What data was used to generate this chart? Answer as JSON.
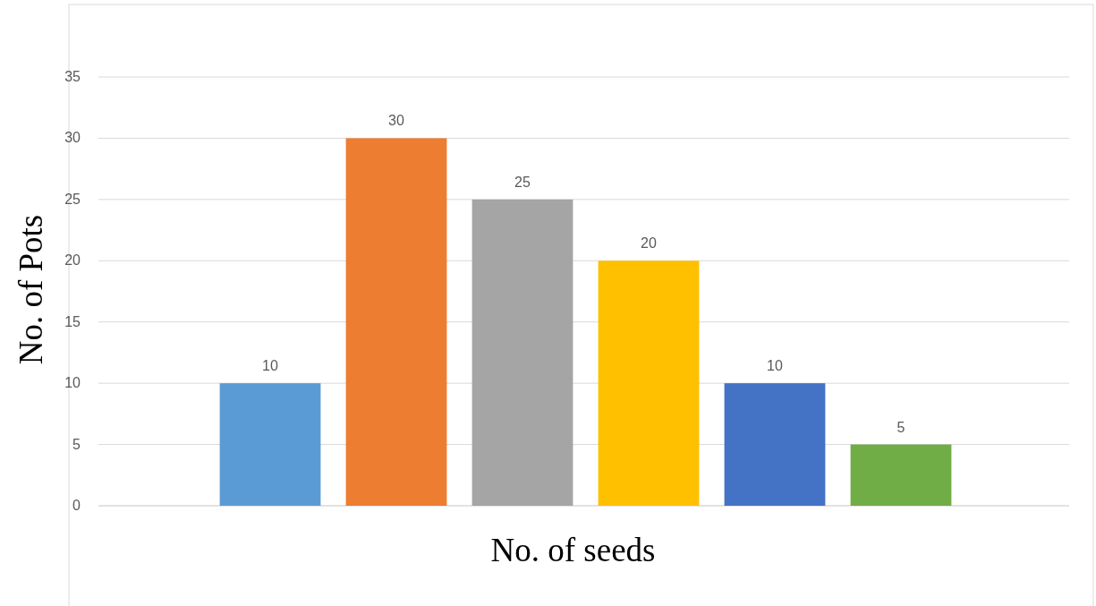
{
  "chart_data": {
    "type": "bar",
    "xlabel": "No. of seeds",
    "ylabel": "No. of Pots",
    "categories": [
      null,
      null,
      null,
      null,
      null,
      null
    ],
    "values": [
      10,
      30,
      25,
      20,
      10,
      5
    ],
    "colors": [
      "#5b9bd5",
      "#ed7d31",
      "#a5a5a5",
      "#ffc000",
      "#4472c4",
      "#70ad47"
    ],
    "ylim": [
      0,
      35
    ],
    "yticks": [
      0,
      5,
      10,
      15,
      20,
      25,
      30,
      35
    ],
    "grid": "y",
    "data_labels": true
  }
}
